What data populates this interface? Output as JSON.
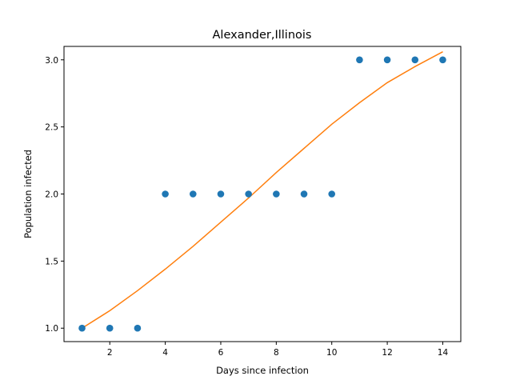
{
  "chart_data": {
    "type": "scatter",
    "title": "Alexander,Illinois",
    "xlabel": "Days since infection",
    "ylabel": "Population infected",
    "xlim": [
      0.35,
      14.65
    ],
    "ylim": [
      0.9,
      3.1
    ],
    "xticks": [
      2,
      4,
      6,
      8,
      10,
      12,
      14
    ],
    "yticks": [
      1.0,
      1.5,
      2.0,
      2.5,
      3.0
    ],
    "ytick_labels": [
      "1.0",
      "1.5",
      "2.0",
      "2.5",
      "3.0"
    ],
    "grid": false,
    "colors": {
      "points": "#1f77b4",
      "fit": "#ff7f0e"
    },
    "series": [
      {
        "kind": "scatter",
        "x": [
          1,
          2,
          3,
          4,
          5,
          6,
          7,
          8,
          9,
          10,
          11,
          12,
          13,
          14
        ],
        "y": [
          1,
          1,
          1,
          2,
          2,
          2,
          2,
          2,
          2,
          2,
          3,
          3,
          3,
          3
        ]
      },
      {
        "kind": "line",
        "x": [
          1,
          2,
          3,
          4,
          5,
          6,
          7,
          8,
          9,
          10,
          11,
          12,
          13,
          14
        ],
        "y": [
          1.0,
          1.13,
          1.28,
          1.44,
          1.61,
          1.79,
          1.97,
          2.16,
          2.34,
          2.52,
          2.68,
          2.83,
          2.95,
          3.06
        ]
      }
    ]
  }
}
